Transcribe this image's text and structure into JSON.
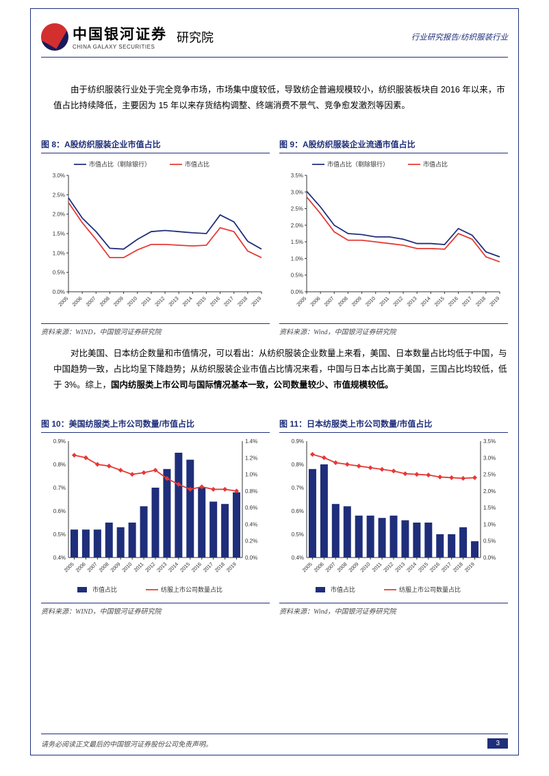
{
  "header": {
    "company_cn": "中国银河证券",
    "company_en": "CHINA GALAXY SECURITIES",
    "institute": "研究院",
    "breadcrumb": "行业研究报告/纺织服装行业"
  },
  "paragraphs": {
    "p1": "由于纺织服装行业处于完全竞争市场，市场集中度较低，导致纺企普遍规模较小，纺织服装板块自 2016 年以来，市值占比持续降低，主要因为 15 年以来存货结构调整、终端消费不景气、竞争愈发激烈等因素。",
    "p2_plain": "对比美国、日本纺企数量和市值情况，可以看出：从纺织服装企业数量上来看，美国、日本数量占比均低于中国，与中国趋势一致，占比均呈下降趋势；从纺织服装企业市值占比情况来看，中国与日本占比高于美国，三国占比均较低，低于 3%。综上，",
    "p2_bold": "国内纺服类上市公司与国际情况基本一致，公司数量较少、市值规模较低。"
  },
  "figures": {
    "fig8": {
      "title": "图 8：A股纺织服装企业市值占比",
      "source": "资料来源：WIND，中国银河证券研究院",
      "type": "line",
      "legend": [
        "市值占比（剔除银行）",
        "市值占比"
      ],
      "colors": [
        "#1f2e7a",
        "#e53935"
      ],
      "x": [
        "2005",
        "2006",
        "2007",
        "2008",
        "2009",
        "2010",
        "2011",
        "2012",
        "2013",
        "2014",
        "2015",
        "2016",
        "2017",
        "2018",
        "2019"
      ],
      "ylim": [
        0,
        3.0
      ],
      "ytick_step": 0.5,
      "y_format": "percent",
      "series": [
        [
          2.42,
          1.9,
          1.55,
          1.12,
          1.1,
          1.35,
          1.55,
          1.58,
          1.55,
          1.52,
          1.5,
          1.98,
          1.8,
          1.3,
          1.1
        ],
        [
          2.3,
          1.78,
          1.35,
          0.88,
          0.88,
          1.08,
          1.22,
          1.22,
          1.2,
          1.18,
          1.2,
          1.65,
          1.55,
          1.05,
          0.88
        ]
      ],
      "background": "#ffffff",
      "line_width": 1.8
    },
    "fig9": {
      "title": "图 9：A股纺织服装企业流通市值占比",
      "source": "资料来源：Wind，中国银河证券研究院",
      "type": "line",
      "legend": [
        "市值占比（剔除银行）",
        "市值占比"
      ],
      "colors": [
        "#1f2e7a",
        "#e53935"
      ],
      "x": [
        "2005",
        "2006",
        "2007",
        "2008",
        "2009",
        "2010",
        "2011",
        "2012",
        "2013",
        "2014",
        "2015",
        "2016",
        "2017",
        "2018",
        "2019"
      ],
      "ylim": [
        0,
        3.5
      ],
      "ytick_step": 0.5,
      "y_format": "percent",
      "series": [
        [
          3.02,
          2.55,
          2.0,
          1.75,
          1.72,
          1.65,
          1.65,
          1.58,
          1.45,
          1.45,
          1.42,
          1.9,
          1.7,
          1.2,
          1.05
        ],
        [
          2.85,
          2.35,
          1.8,
          1.55,
          1.55,
          1.5,
          1.45,
          1.4,
          1.3,
          1.3,
          1.28,
          1.75,
          1.58,
          1.05,
          0.9
        ]
      ],
      "background": "#ffffff",
      "line_width": 1.8
    },
    "fig10": {
      "title": "图 10：美国纺服类上市公司数量/市值占比",
      "source": "资料来源：WIND，中国银河证券研究院",
      "type": "bar_line",
      "legend": [
        "市值占比",
        "纺服上市公司数量占比"
      ],
      "bar_color": "#1f2e7a",
      "line_color": "#e53935",
      "x": [
        "2005",
        "2006",
        "2007",
        "2008",
        "2009",
        "2010",
        "2011",
        "2012",
        "2013",
        "2014",
        "2015",
        "2016",
        "2017",
        "2018",
        "2019"
      ],
      "ylim_left": [
        0.4,
        0.9
      ],
      "ytick_left_step": 0.1,
      "ylim_right": [
        0.0,
        1.4
      ],
      "ytick_right_step": 0.2,
      "y_format": "percent",
      "bars": [
        0.52,
        0.52,
        0.52,
        0.55,
        0.53,
        0.55,
        0.62,
        0.7,
        0.78,
        0.85,
        0.82,
        0.7,
        0.64,
        0.63,
        0.68
      ],
      "line": [
        1.23,
        1.2,
        1.12,
        1.1,
        1.05,
        1.0,
        1.02,
        1.05,
        0.95,
        0.88,
        0.82,
        0.85,
        0.82,
        0.82,
        0.8
      ],
      "background": "#ffffff",
      "line_width": 1.8,
      "bar_width": 0.65
    },
    "fig11": {
      "title": "图 11：日本纺服类上市公司数量/市值占比",
      "source": "资料来源：Wind，中国银河证券研究院",
      "type": "bar_line",
      "legend": [
        "市值占比",
        "纺服上市公司数量占比"
      ],
      "bar_color": "#1f2e7a",
      "line_color": "#e53935",
      "x": [
        "2005",
        "2006",
        "2007",
        "2008",
        "2009",
        "2010",
        "2011",
        "2012",
        "2013",
        "2014",
        "2015",
        "2016",
        "2017",
        "2018",
        "2019"
      ],
      "ylim_left": [
        0.4,
        0.9
      ],
      "ytick_left_step": 0.1,
      "ylim_right": [
        0.0,
        3.5
      ],
      "ytick_right_step": 0.5,
      "y_format": "percent",
      "bars": [
        0.78,
        0.8,
        0.63,
        0.62,
        0.58,
        0.58,
        0.57,
        0.58,
        0.56,
        0.55,
        0.55,
        0.5,
        0.5,
        0.53,
        0.47
      ],
      "line": [
        3.1,
        3.0,
        2.85,
        2.8,
        2.75,
        2.7,
        2.65,
        2.6,
        2.52,
        2.5,
        2.48,
        2.42,
        2.4,
        2.38,
        2.4
      ],
      "background": "#ffffff",
      "line_width": 1.8,
      "bar_width": 0.65
    }
  },
  "footer": {
    "disclaimer": "请务必阅读正文最后的中国银河证券股份公司免责声明。",
    "page": "3"
  },
  "style": {
    "brand_blue": "#1f2e7a",
    "brand_red": "#e53935",
    "text_color": "#000000",
    "grid_color": "#bfbfbf",
    "font_body": 12.5,
    "font_title": 12,
    "font_axis": 8
  }
}
